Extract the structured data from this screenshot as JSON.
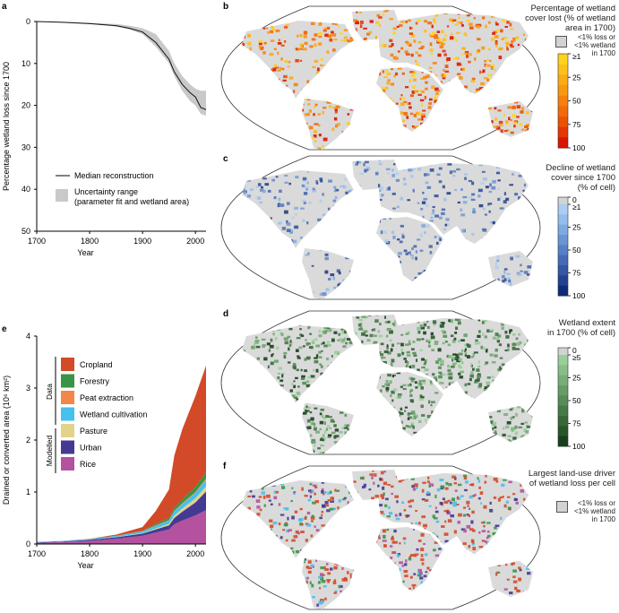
{
  "panels": {
    "a": "a",
    "b": "b",
    "c": "c",
    "d": "d",
    "e": "e",
    "f": "f"
  },
  "chart_data": [
    {
      "type": "line",
      "panel": "a",
      "xlabel": "Year",
      "ylabel": "Percentage wetland loss since 1700",
      "xlim": [
        1700,
        2020
      ],
      "ylim": [
        0,
        50
      ],
      "y_inverted": true,
      "xticks": [
        1700,
        1800,
        1900,
        2000
      ],
      "yticks": [
        0,
        10,
        20,
        30,
        40,
        50
      ],
      "x": [
        1700,
        1750,
        1800,
        1850,
        1875,
        1900,
        1925,
        1950,
        1960,
        1975,
        1990,
        2000,
        2010,
        2020
      ],
      "series": [
        {
          "name": "Median reconstruction",
          "values": [
            0,
            0.2,
            0.5,
            1,
            1.6,
            2.5,
            5,
            9,
            12,
            15,
            17,
            18,
            20.5,
            21
          ]
        },
        {
          "name": "Uncertainty range lower",
          "values": [
            0,
            0.1,
            0.3,
            0.6,
            1,
            1.6,
            3,
            7,
            10,
            13,
            15,
            16,
            16.5,
            16.5
          ]
        },
        {
          "name": "Uncertainty range upper",
          "values": [
            0,
            0.3,
            0.6,
            1.2,
            1.9,
            3,
            6,
            10,
            13,
            16.5,
            19,
            20,
            22,
            22.5
          ]
        }
      ],
      "legend": [
        "Median reconstruction",
        "Uncertainty range\n(parameter fit and wetland area)"
      ],
      "legend_lines": [
        "Median reconstruction",
        "Uncertainty range",
        "(parameter fit and wetland area)"
      ],
      "legend_placement": "bottom-left"
    },
    {
      "type": "area",
      "panel": "e",
      "stacked": true,
      "xlabel": "Year",
      "ylabel": "Drained or converted area (10⁶ km²)",
      "xlim": [
        1700,
        2020
      ],
      "ylim": [
        0,
        4
      ],
      "xticks": [
        1700,
        1800,
        1900,
        2000
      ],
      "yticks": [
        0,
        1,
        2,
        3,
        4
      ],
      "x": [
        1700,
        1750,
        1800,
        1850,
        1900,
        1925,
        1950,
        1960,
        1975,
        2000,
        2020
      ],
      "series": [
        {
          "name": "Rice",
          "group": "Modelled",
          "color": "#b4529f",
          "values": [
            0.02,
            0.04,
            0.06,
            0.1,
            0.16,
            0.22,
            0.28,
            0.38,
            0.45,
            0.55,
            0.65
          ]
        },
        {
          "name": "Urban",
          "group": "Modelled",
          "color": "#443a93",
          "values": [
            0.01,
            0.01,
            0.02,
            0.03,
            0.04,
            0.06,
            0.08,
            0.12,
            0.17,
            0.25,
            0.36
          ]
        },
        {
          "name": "Pasture",
          "group": "Modelled",
          "color": "#e2d28a",
          "values": [
            0,
            0,
            0,
            0.005,
            0.01,
            0.02,
            0.03,
            0.05,
            0.06,
            0.08,
            0.1
          ]
        },
        {
          "name": "Wetland cultivation",
          "group": "Data",
          "color": "#47c0ee",
          "values": [
            0.01,
            0.01,
            0.015,
            0.02,
            0.03,
            0.05,
            0.06,
            0.08,
            0.09,
            0.1,
            0.13
          ]
        },
        {
          "name": "Peat extraction",
          "group": "Data",
          "color": "#f2874a",
          "values": [
            0,
            0,
            0,
            0,
            0.005,
            0.005,
            0.01,
            0.01,
            0.015,
            0.02,
            0.02
          ]
        },
        {
          "name": "Forestry",
          "group": "Data",
          "color": "#3a9446",
          "values": [
            0,
            0,
            0,
            0.005,
            0.01,
            0.03,
            0.04,
            0.06,
            0.07,
            0.1,
            0.12
          ]
        },
        {
          "name": "Cropland",
          "group": "Data",
          "color": "#d24a28",
          "values": [
            0,
            0,
            0.005,
            0.02,
            0.07,
            0.25,
            0.55,
            1.0,
            1.35,
            1.75,
            2.05
          ]
        }
      ],
      "legend_order": [
        "Cropland",
        "Forestry",
        "Peat extraction",
        "Wetland cultivation",
        "Pasture",
        "Urban",
        "Rice"
      ],
      "groups": [
        "Data",
        "Modelled"
      ],
      "legend_placement": "top-left"
    }
  ],
  "maps": {
    "b": {
      "title": [
        "Percentage of wetland",
        "cover lost (% of wetland",
        "area in 1700)"
      ],
      "nodata": [
        "<1% loss or",
        "<1% wetland",
        "in 1700"
      ],
      "ticks": [
        "≥1",
        "25",
        "50",
        "75",
        "100"
      ],
      "colors": [
        "#fdd31f",
        "#fcc01a",
        "#fbab14",
        "#f99710",
        "#f6800c",
        "#f26a09",
        "#ec5206",
        "#e53604",
        "#dc1402"
      ]
    },
    "c": {
      "title": [
        "Decline of wetland",
        "cover since 1700",
        "(% of cell)"
      ],
      "ticks": [
        "0",
        "≥1",
        "25",
        "50",
        "75",
        "100"
      ],
      "colors": [
        "#a9cdf3",
        "#93bdec",
        "#7ea9e1",
        "#6995d5",
        "#5680c7",
        "#446bb7",
        "#3356a5",
        "#224190",
        "#0f2a78"
      ]
    },
    "d": {
      "title": [
        "Wetland extent",
        "in 1700 (% of cell)"
      ],
      "ticks": [
        "0",
        "≥5",
        "25",
        "50",
        "75",
        "100"
      ],
      "colors": [
        "#98d098",
        "#87bf87",
        "#77ae77",
        "#669d67",
        "#568c57",
        "#467a48",
        "#366839",
        "#27562b",
        "#173f1d"
      ]
    },
    "f": {
      "title": [
        "Largest land-use driver",
        "of wetland loss per cell"
      ],
      "nodata": [
        "<1% loss or",
        "<1% wetland",
        "in 1700"
      ],
      "colors": [
        "#d24a28",
        "#d24a28",
        "#d24a28",
        "#47c0ee",
        "#b4529f",
        "#443a93",
        "#3a9446"
      ]
    }
  },
  "colors": {
    "land": "#dadada",
    "band": "#c9c9c9",
    "axis": "#000000"
  }
}
